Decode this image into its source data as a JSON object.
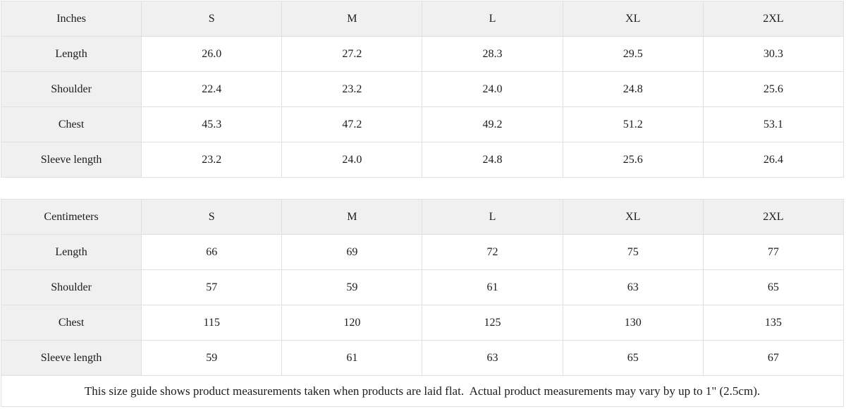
{
  "colors": {
    "header_bg": "#f0f0f0",
    "border": "#e0e0e0",
    "text": "#1c1c1c",
    "page_bg": "#ffffff"
  },
  "inches": {
    "unit_label": "Inches",
    "columns": [
      "S",
      "M",
      "L",
      "XL",
      "2XL"
    ],
    "rows": [
      {
        "label": "Length",
        "values": [
          "26.0",
          "27.2",
          "28.3",
          "29.5",
          "30.3"
        ]
      },
      {
        "label": "Shoulder",
        "values": [
          "22.4",
          "23.2",
          "24.0",
          "24.8",
          "25.6"
        ]
      },
      {
        "label": "Chest",
        "values": [
          "45.3",
          "47.2",
          "49.2",
          "51.2",
          "53.1"
        ]
      },
      {
        "label": "Sleeve length",
        "values": [
          "23.2",
          "24.0",
          "24.8",
          "25.6",
          "26.4"
        ]
      }
    ]
  },
  "centimeters": {
    "unit_label": "Centimeters",
    "columns": [
      "S",
      "M",
      "L",
      "XL",
      "2XL"
    ],
    "rows": [
      {
        "label": "Length",
        "values": [
          "66",
          "69",
          "72",
          "75",
          "77"
        ]
      },
      {
        "label": "Shoulder",
        "values": [
          "57",
          "59",
          "61",
          "63",
          "65"
        ]
      },
      {
        "label": "Chest",
        "values": [
          "115",
          "120",
          "125",
          "130",
          "135"
        ]
      },
      {
        "label": "Sleeve length",
        "values": [
          "59",
          "61",
          "63",
          "65",
          "67"
        ]
      }
    ]
  },
  "footer_note": "This size guide shows product measurements taken when products are laid flat.  Actual product measurements may vary by up to 1\" (2.5cm)."
}
